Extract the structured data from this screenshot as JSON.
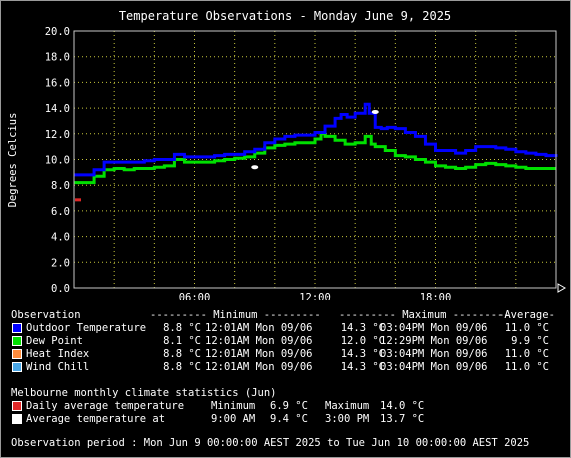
{
  "chart_data": {
    "type": "line",
    "title": "Temperature Observations - Monday June 9, 2025",
    "ylabel": "Degrees Celcius",
    "xlabel": "",
    "ylim": [
      0,
      20
    ],
    "yticks": [
      "0.0",
      "2.0",
      "4.0",
      "6.0",
      "8.0",
      "10.0",
      "12.0",
      "14.0",
      "16.0",
      "18.0",
      "20.0"
    ],
    "xlim": [
      0,
      24
    ],
    "xticks": [
      {
        "x": 6,
        "label": "06:00"
      },
      {
        "x": 12,
        "label": "12:00"
      },
      {
        "x": 18,
        "label": "18:00"
      }
    ],
    "grid": true,
    "colors": {
      "background": "#000000",
      "grid": "#c8c83c",
      "outdoor": "#0000ff",
      "dew": "#00e000",
      "heat": "#ff8c3c",
      "wind": "#4aa8e8",
      "daily_avg": "#e02828",
      "avg_marker": "#ffffff"
    },
    "series": [
      {
        "name": "Outdoor Temperature",
        "color": "#0000ff",
        "x": [
          0,
          0.5,
          1,
          1.5,
          2,
          2.5,
          3,
          3.5,
          4,
          4.5,
          5,
          5.5,
          6,
          6.5,
          7,
          7.5,
          8,
          8.5,
          9,
          9.5,
          10,
          10.5,
          11,
          11.5,
          12,
          12.5,
          13,
          13.3,
          13.6,
          14,
          14.5,
          14.7,
          15,
          15.3,
          15.6,
          16,
          16.5,
          17,
          17.5,
          18,
          18.5,
          19,
          19.5,
          20,
          20.5,
          21,
          21.5,
          22,
          22.5,
          23,
          23.5,
          24
        ],
        "values": [
          8.8,
          8.8,
          9.2,
          9.8,
          9.8,
          9.8,
          9.8,
          9.9,
          10.0,
          10.0,
          10.4,
          10.2,
          10.2,
          10.2,
          10.3,
          10.4,
          10.4,
          10.6,
          10.8,
          11.3,
          11.6,
          11.8,
          11.9,
          11.9,
          12.1,
          12.6,
          13.2,
          13.5,
          13.3,
          13.6,
          14.3,
          13.6,
          12.5,
          12.4,
          12.5,
          12.4,
          12.1,
          11.8,
          11.2,
          10.7,
          10.7,
          10.5,
          10.7,
          11.0,
          11.0,
          10.9,
          10.8,
          10.6,
          10.5,
          10.4,
          10.3,
          10.2
        ]
      },
      {
        "name": "Dew Point",
        "color": "#00e000",
        "x": [
          0,
          0.5,
          1,
          1.5,
          2,
          2.5,
          3,
          3.5,
          4,
          4.5,
          5,
          5.5,
          6,
          6.5,
          7,
          7.5,
          8,
          8.5,
          9,
          9.5,
          10,
          10.5,
          11,
          11.5,
          12,
          12.3,
          12.5,
          13,
          13.5,
          14,
          14.5,
          14.8,
          15,
          15.5,
          16,
          16.5,
          17,
          17.5,
          18,
          18.5,
          19,
          19.5,
          20,
          20.5,
          21,
          21.5,
          22,
          22.5,
          23,
          23.5,
          24
        ],
        "values": [
          8.2,
          8.2,
          8.7,
          9.2,
          9.3,
          9.2,
          9.3,
          9.3,
          9.4,
          9.5,
          10.0,
          9.8,
          9.8,
          9.8,
          9.9,
          10.0,
          10.1,
          10.2,
          10.5,
          10.9,
          11.1,
          11.2,
          11.3,
          11.3,
          11.6,
          12.0,
          11.8,
          11.5,
          11.2,
          11.3,
          11.8,
          11.2,
          11.0,
          10.7,
          10.3,
          10.2,
          10.0,
          9.8,
          9.5,
          9.4,
          9.3,
          9.4,
          9.6,
          9.7,
          9.6,
          9.5,
          9.4,
          9.3,
          9.3,
          9.3,
          9.3
        ]
      },
      {
        "name": "Heat Index",
        "color": "#ff8c3c"
      },
      {
        "name": "Wind Chill",
        "color": "#4aa8e8"
      }
    ],
    "markers": [
      {
        "name": "Daily average temperature",
        "x": 0,
        "y": 6.9,
        "color": "#e02828"
      },
      {
        "name": "Average temperature",
        "x": 9,
        "y": 9.4,
        "color": "#ffffff"
      },
      {
        "name": "Average temperature",
        "x": 15,
        "y": 13.7,
        "color": "#ffffff"
      }
    ]
  },
  "stats": {
    "header": {
      "observation": "Observation",
      "minimum": "--------- Minimum ---------",
      "maximum": "--------- Maximum ---------",
      "average": "-Average-"
    },
    "rows": [
      {
        "label": "Outdoor Temperature",
        "color": "#0000ff",
        "min": "8.8 °C",
        "min_at": "12:01AM Mon 09/06",
        "max": "14.3 °C",
        "max_at": "03:04PM Mon 09/06",
        "avg": "11.0 °C"
      },
      {
        "label": "Dew Point",
        "color": "#00e000",
        "min": "8.1 °C",
        "min_at": "12:01AM Mon 09/06",
        "max": "12.0 °C",
        "max_at": "12:29PM Mon 09/06",
        "avg": "9.9 °C"
      },
      {
        "label": "Heat Index",
        "color": "#ff8c3c",
        "min": "8.8 °C",
        "min_at": "12:01AM Mon 09/06",
        "max": "14.3 °C",
        "max_at": "03:04PM Mon 09/06",
        "avg": "11.0 °C"
      },
      {
        "label": "Wind Chill",
        "color": "#4aa8e8",
        "min": "8.8 °C",
        "min_at": "12:01AM Mon 09/06",
        "max": "14.3 °C",
        "max_at": "03:04PM Mon 09/06",
        "avg": "11.0 °C"
      }
    ]
  },
  "climate": {
    "title": "Melbourne monthly climate statistics (Jun)",
    "daily_label": "Daily average temperature",
    "daily_color": "#e02828",
    "daily_min_label": "Minimum",
    "daily_min": "6.9 °C",
    "daily_max_label": "Maximum",
    "daily_max": "14.0 °C",
    "avg_label": "Average temperature at",
    "avg_color": "#ffffff",
    "avg1_time": "9:00 AM",
    "avg1_val": "9.4 °C",
    "avg2_time": "3:00 PM",
    "avg2_val": "13.7 °C"
  },
  "period": "Observation period : Mon Jun 9 00:00:00 AEST 2025 to Tue Jun 10 00:00:00 AEST 2025"
}
